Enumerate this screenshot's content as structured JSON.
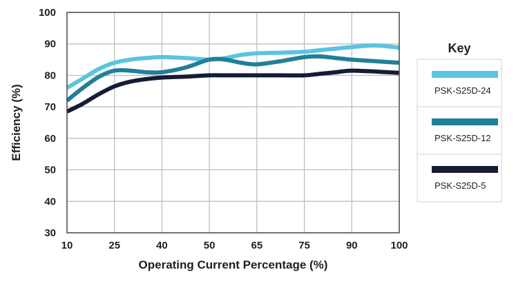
{
  "chart_data": {
    "type": "line",
    "title": "",
    "xlabel": "Operating Current Percentage (%)",
    "ylabel": "Efficiency (%)",
    "x_ticks": [
      "10",
      "25",
      "40",
      "50",
      "65",
      "75",
      "90",
      "100"
    ],
    "y_ticks": [
      30,
      40,
      50,
      60,
      70,
      80,
      90,
      100
    ],
    "ylim": [
      30,
      100
    ],
    "grid": true,
    "legend": {
      "title": "Key",
      "placement": "right"
    },
    "x": [
      10,
      15,
      20,
      25,
      30,
      35,
      40,
      45,
      50,
      55,
      60,
      65,
      70,
      75,
      80,
      85,
      90,
      95,
      100
    ],
    "series": [
      {
        "name": "PSK-S25D-24",
        "color": "#5bc4e0",
        "values": [
          76,
          79,
          82,
          84,
          85,
          85.5,
          85.8,
          85.5,
          85,
          85.5,
          86.5,
          87,
          87.2,
          87.5,
          88,
          88.5,
          89,
          89.5,
          88.8
        ]
      },
      {
        "name": "PSK-S25D-12",
        "color": "#217f9a",
        "values": [
          72,
          76,
          79.5,
          81.5,
          81.5,
          81,
          81,
          82.5,
          85,
          85,
          84,
          83.5,
          84.5,
          85.8,
          86,
          85.5,
          85,
          84.5,
          84
        ]
      },
      {
        "name": "PSK-S25D-5",
        "color": "#161c36",
        "values": [
          68.5,
          71,
          74,
          76.5,
          78,
          78.8,
          79.3,
          79.6,
          80,
          80,
          80,
          80,
          80,
          80,
          80.5,
          81,
          81.5,
          81.2,
          80.8
        ]
      }
    ]
  }
}
